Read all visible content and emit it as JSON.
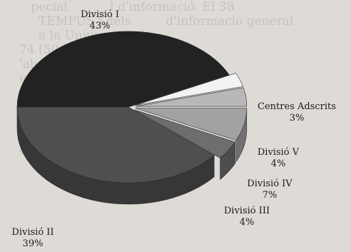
{
  "chart_data": {
    "type": "pie",
    "slices": [
      {
        "label": "Divisió I",
        "value": 43,
        "value_text": "43%",
        "color": "#222222"
      },
      {
        "label": "Centres Adscrits",
        "value": 3,
        "value_text": "3%",
        "color": "#f2f2f2"
      },
      {
        "label": "Divisió V",
        "value": 4,
        "value_text": "4%",
        "color": "#b8b8b8"
      },
      {
        "label": "Divisió IV",
        "value": 7,
        "value_text": "7%",
        "color": "#a2a2a2"
      },
      {
        "label": "Divisió III",
        "value": 4,
        "value_text": "4%",
        "color": "#6e6e6e"
      },
      {
        "label": "Divisió II",
        "value": 39,
        "value_text": "39%",
        "color": "#4f4f4f"
      }
    ],
    "style": "3d-exploded"
  }
}
